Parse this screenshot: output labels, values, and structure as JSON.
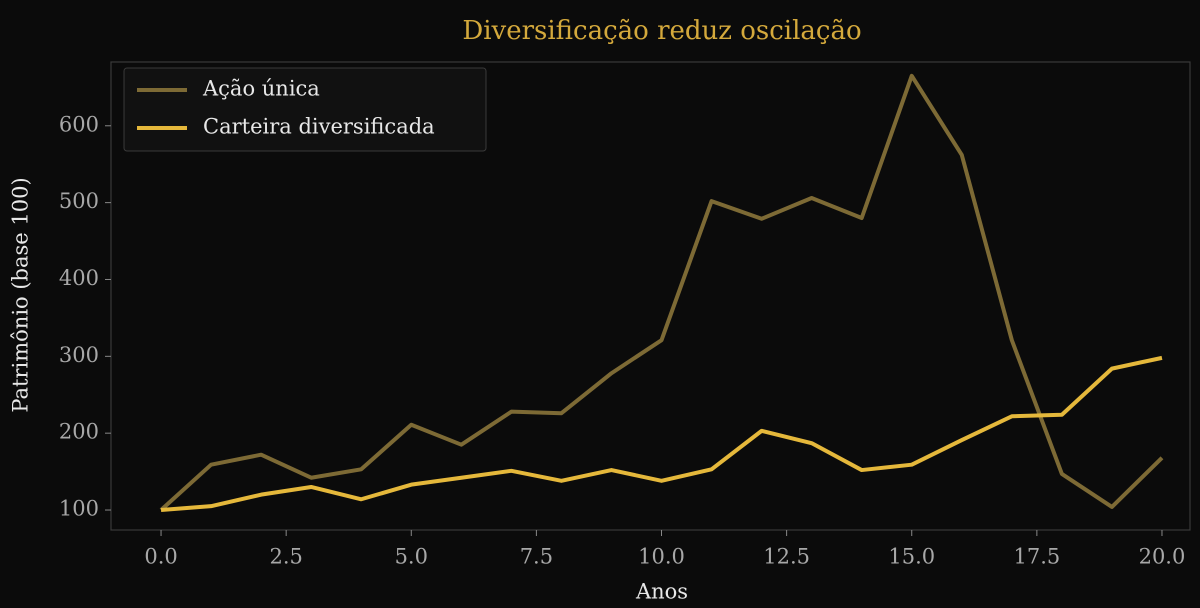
{
  "chart_data": {
    "type": "line",
    "title": "Diversificação reduz oscilação",
    "x_label": "Anos",
    "y_label": "Patrimônio (base 100)",
    "x": [
      0,
      1,
      2,
      3,
      4,
      5,
      6,
      7,
      8,
      9,
      10,
      11,
      12,
      13,
      14,
      15,
      16,
      17,
      18,
      19,
      20
    ],
    "series": [
      {
        "name": "Ação única",
        "color": "#7d6a35",
        "values": [
          100,
          159,
          172,
          142,
          153,
          211,
          185,
          228,
          226,
          278,
          321,
          502,
          479,
          506,
          480,
          665,
          562,
          321,
          147,
          104,
          168
        ]
      },
      {
        "name": "Carteira diversificada",
        "color": "#e5b83b",
        "values": [
          100,
          105,
          120,
          130,
          114,
          133,
          142,
          151,
          138,
          152,
          138,
          153,
          203,
          187,
          152,
          159,
          191,
          222,
          224,
          284,
          298
        ]
      }
    ],
    "xlim": [
      -1,
      20.56
    ],
    "ylim": [
      74,
      683
    ],
    "xticks": [
      {
        "value": 0,
        "label": "0.0"
      },
      {
        "value": 2.5,
        "label": "2.5"
      },
      {
        "value": 5,
        "label": "5.0"
      },
      {
        "value": 7.5,
        "label": "7.5"
      },
      {
        "value": 10,
        "label": "10.0"
      },
      {
        "value": 12.5,
        "label": "12.5"
      },
      {
        "value": 15,
        "label": "15.0"
      },
      {
        "value": 17.5,
        "label": "17.5"
      },
      {
        "value": 20,
        "label": "20.0"
      }
    ],
    "yticks": [
      100,
      200,
      300,
      400,
      500,
      600
    ],
    "legend": "upper left",
    "grid": false
  }
}
